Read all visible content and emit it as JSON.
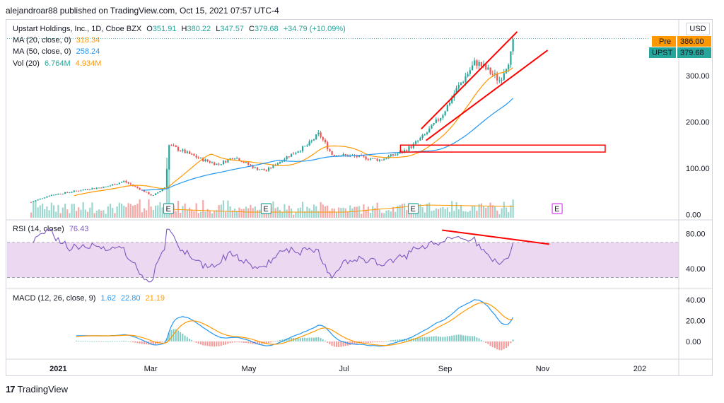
{
  "header": {
    "published": "alejandroar88 published on TradingView.com, Oct 15, 2021 07:57 UTC-4"
  },
  "legend": {
    "title": "Upstart Holdings, Inc., 1D, Cboe BZX",
    "o_label": "O",
    "o": "351.91",
    "h_label": "H",
    "h": "380.22",
    "l_label": "L",
    "l": "347.57",
    "c_label": "C",
    "c": "379.68",
    "chg": "+34.79 (+10.09%)",
    "ma20_label": "MA (20, close, 0)",
    "ma20": "318.34",
    "ma50_label": "MA (50, close, 0)",
    "ma50": "258.24",
    "vol_label": "Vol (20)",
    "vol1": "6.764M",
    "vol2": "4.934M",
    "rsi_label": "RSI (14, close)",
    "rsi": "76.43",
    "macd_label": "MACD (12, 26, close, 9)",
    "macd1": "1.62",
    "macd2": "22.80",
    "macd3": "21.19"
  },
  "price_tags": {
    "currency": "USD",
    "pre_label": "Pre",
    "pre_value": "386.00",
    "ticker": "UPST",
    "last": "379.68"
  },
  "colors": {
    "up": "#26a69a",
    "down": "#ef5350",
    "ma20": "#ff9800",
    "ma50": "#2196f3",
    "rsi": "#7e57c2",
    "rsi_band": "#e1bee7",
    "trend": "#ff0000",
    "earnings": "#26a69a"
  },
  "footer": {
    "brand": "TradingView"
  },
  "chart_data": [
    {
      "type": "candlestick",
      "title": "Upstart Holdings, Inc., 1D, Cboe BZX",
      "x_ticks": [
        "2021",
        "Mar",
        "May",
        "Jul",
        "Sep",
        "Nov",
        "202"
      ],
      "y_ticks": [
        "0.00",
        "100.00",
        "200.00",
        "300.00"
      ],
      "ylim": [
        -10,
        410
      ],
      "close_path": [
        [
          "2020-12-16",
          27
        ],
        [
          "2020-12-28",
          42
        ],
        [
          "2021-01-08",
          48
        ],
        [
          "2021-01-20",
          55
        ],
        [
          "2021-02-01",
          60
        ],
        [
          "2021-02-12",
          72
        ],
        [
          "2021-02-22",
          55
        ],
        [
          "2021-03-02",
          40
        ],
        [
          "2021-03-10",
          60
        ],
        [
          "2021-03-12",
          150
        ],
        [
          "2021-03-22",
          135
        ],
        [
          "2021-04-01",
          120
        ],
        [
          "2021-04-12",
          108
        ],
        [
          "2021-04-22",
          125
        ],
        [
          "2021-05-05",
          100
        ],
        [
          "2021-05-12",
          95
        ],
        [
          "2021-05-25",
          125
        ],
        [
          "2021-06-07",
          150
        ],
        [
          "2021-06-14",
          175
        ],
        [
          "2021-06-22",
          130
        ],
        [
          "2021-07-08",
          125
        ],
        [
          "2021-07-22",
          118
        ],
        [
          "2021-08-05",
          135
        ],
        [
          "2021-08-12",
          150
        ],
        [
          "2021-08-20",
          175
        ],
        [
          "2021-08-30",
          215
        ],
        [
          "2021-09-08",
          270
        ],
        [
          "2021-09-20",
          330
        ],
        [
          "2021-09-28",
          310
        ],
        [
          "2021-10-05",
          290
        ],
        [
          "2021-10-12",
          345
        ],
        [
          "2021-10-14",
          380
        ]
      ],
      "annotations": [
        "rising wedge trendlines",
        "breakout box near 142",
        "earnings markers E"
      ]
    },
    {
      "type": "line",
      "title": "RSI (14, close)",
      "y_ticks": [
        "40.00",
        "80.00"
      ],
      "band": [
        30,
        70
      ],
      "last": 76.43
    },
    {
      "type": "line",
      "title": "MACD (12, 26, close, 9)",
      "y_ticks": [
        "0.00",
        "20.00",
        "40.00"
      ],
      "series": [
        {
          "name": "MACD"
        },
        {
          "name": "Signal"
        },
        {
          "name": "Histogram"
        }
      ]
    }
  ]
}
